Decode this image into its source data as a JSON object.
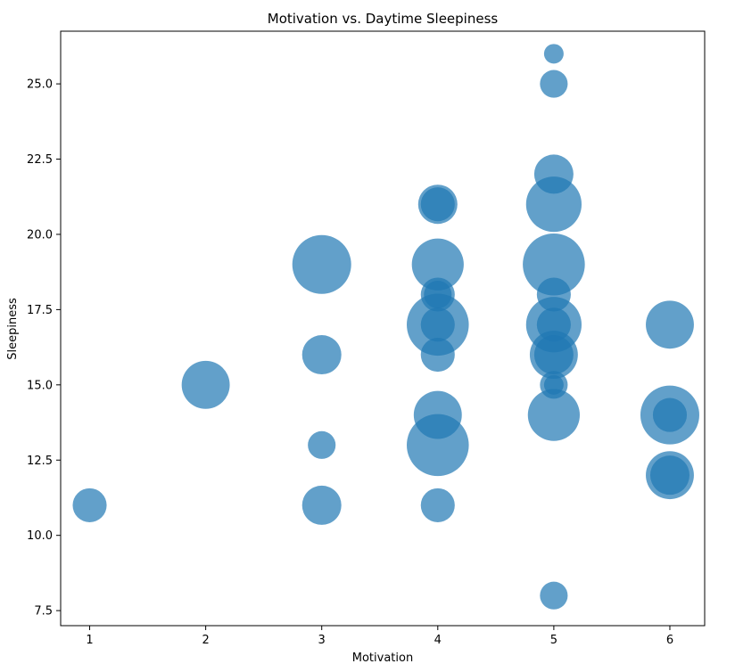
{
  "chart_data": {
    "type": "scatter",
    "title": "Motivation vs. Daytime Sleepiness",
    "xlabel": "Motivation",
    "ylabel": "Sleepiness",
    "xlim": [
      0.75,
      6.3
    ],
    "ylim": [
      7.0,
      26.75
    ],
    "xticks": [
      1,
      2,
      3,
      4,
      5,
      6
    ],
    "yticks": [
      7.5,
      10.0,
      12.5,
      15.0,
      17.5,
      20.0,
      22.5,
      25.0
    ],
    "ytick_labels": [
      "7.5",
      "10.0",
      "12.5",
      "15.0",
      "17.5",
      "20.0",
      "22.5",
      "25.0"
    ],
    "grid": false,
    "color": "#1f77b4",
    "alpha": 0.7,
    "size_note": "relative bubble size (area weight)",
    "points": [
      {
        "x": 1,
        "y": 11,
        "s": 3
      },
      {
        "x": 2,
        "y": 15,
        "s": 6
      },
      {
        "x": 3,
        "y": 19,
        "s": 9
      },
      {
        "x": 3,
        "y": 16,
        "s": 4
      },
      {
        "x": 3,
        "y": 13,
        "s": 2
      },
      {
        "x": 3,
        "y": 11,
        "s": 4
      },
      {
        "x": 4,
        "y": 21,
        "s": 4
      },
      {
        "x": 4,
        "y": 21,
        "s": 3
      },
      {
        "x": 4,
        "y": 19,
        "s": 7
      },
      {
        "x": 4,
        "y": 18,
        "s": 2
      },
      {
        "x": 4,
        "y": 18,
        "s": 3
      },
      {
        "x": 4,
        "y": 17,
        "s": 10
      },
      {
        "x": 4,
        "y": 17,
        "s": 3
      },
      {
        "x": 4,
        "y": 16,
        "s": 3
      },
      {
        "x": 4,
        "y": 14,
        "s": 6
      },
      {
        "x": 4,
        "y": 13,
        "s": 10
      },
      {
        "x": 4,
        "y": 11,
        "s": 3
      },
      {
        "x": 5,
        "y": 26,
        "s": 1
      },
      {
        "x": 5,
        "y": 25,
        "s": 2
      },
      {
        "x": 5,
        "y": 22,
        "s": 4
      },
      {
        "x": 5,
        "y": 21,
        "s": 8
      },
      {
        "x": 5,
        "y": 19,
        "s": 10
      },
      {
        "x": 5,
        "y": 18,
        "s": 3
      },
      {
        "x": 5,
        "y": 17,
        "s": 8
      },
      {
        "x": 5,
        "y": 17,
        "s": 3
      },
      {
        "x": 5,
        "y": 16,
        "s": 6
      },
      {
        "x": 5,
        "y": 16,
        "s": 4
      },
      {
        "x": 5,
        "y": 15,
        "s": 2
      },
      {
        "x": 5,
        "y": 15,
        "s": 1
      },
      {
        "x": 5,
        "y": 14,
        "s": 7
      },
      {
        "x": 5,
        "y": 8,
        "s": 2
      },
      {
        "x": 6,
        "y": 17,
        "s": 6
      },
      {
        "x": 6,
        "y": 14,
        "s": 9
      },
      {
        "x": 6,
        "y": 14,
        "s": 3
      },
      {
        "x": 6,
        "y": 12,
        "s": 6
      },
      {
        "x": 6,
        "y": 12,
        "s": 4
      }
    ]
  }
}
